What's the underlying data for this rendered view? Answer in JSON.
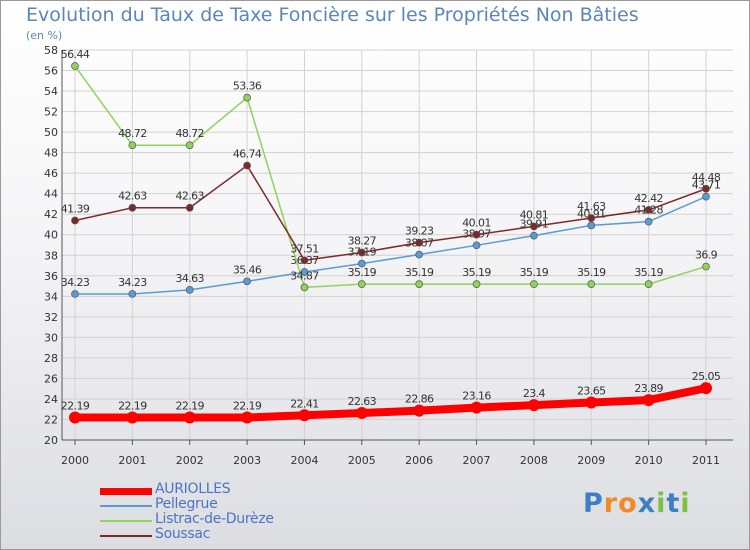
{
  "chart_data": {
    "type": "line",
    "title": "Evolution du Taux de Taxe Foncière sur les Propriétés Non Bâties",
    "subtitle": "(en %)",
    "x": [
      "2000",
      "2001",
      "2002",
      "2003",
      "2004",
      "2005",
      "2006",
      "2007",
      "2008",
      "2009",
      "2010",
      "2011"
    ],
    "ylim": [
      20,
      58
    ],
    "yticks": [
      "20",
      "22",
      "24",
      "26",
      "28",
      "30",
      "32",
      "34",
      "36",
      "38",
      "40",
      "42",
      "44",
      "46",
      "48",
      "50",
      "52",
      "54",
      "56",
      "58"
    ],
    "grid": true,
    "legend_position": "bottom-left",
    "series": [
      {
        "name": "AURIOLLES",
        "color": "#ff0000",
        "values": [
          22.19,
          22.19,
          22.19,
          22.19,
          22.41,
          22.63,
          22.86,
          23.16,
          23.4,
          23.65,
          23.89,
          25.05
        ],
        "labels": [
          "22.19",
          "22.19",
          "22.19",
          "22.19",
          "22.41",
          "22.63",
          "22.86",
          "23.16",
          "23.4",
          "23.65",
          "23.89",
          "25.05"
        ]
      },
      {
        "name": "Pellegrue",
        "color": "#5b9bd5",
        "values": [
          34.23,
          34.23,
          34.63,
          35.46,
          36.37,
          37.19,
          38.07,
          38.97,
          39.91,
          40.91,
          41.28,
          43.71
        ],
        "labels": [
          "34.23",
          "34.23",
          "34.63",
          "35.46",
          "36.37",
          "37.19",
          "38.07",
          "38.97",
          "39.91",
          "40.91",
          "41.28",
          "43.71"
        ]
      },
      {
        "name": "Listrac-de-Durèze",
        "color": "#8ed35a",
        "values": [
          56.44,
          48.72,
          48.72,
          53.36,
          34.87,
          35.19,
          35.19,
          35.19,
          35.19,
          35.19,
          35.19,
          36.9
        ],
        "labels": [
          "56.44",
          "48.72",
          "48.72",
          "53.36",
          "34.87",
          "35.19",
          "35.19",
          "35.19",
          "35.19",
          "35.19",
          "35.19",
          "36.9"
        ]
      },
      {
        "name": "Soussac",
        "color": "#7b2a2a",
        "values": [
          41.39,
          42.63,
          42.63,
          46.74,
          37.51,
          38.27,
          39.23,
          40.01,
          40.81,
          41.63,
          42.42,
          44.48
        ],
        "labels": [
          "41.39",
          "42.63",
          "42.63",
          "46.74",
          "37.51",
          "38.27",
          "39.23",
          "40.01",
          "40.81",
          "41.63",
          "42.42",
          "44.48"
        ]
      }
    ]
  },
  "logo": {
    "text": "Proxiti"
  }
}
